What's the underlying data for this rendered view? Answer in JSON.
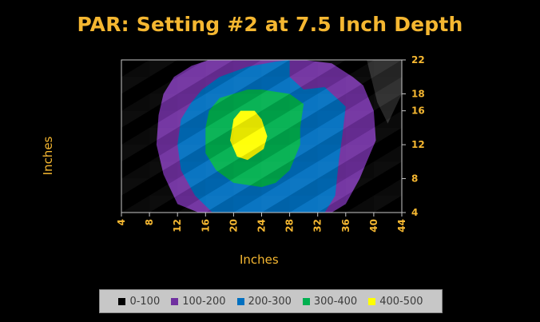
{
  "chart_data": {
    "type": "heatmap",
    "title": "PAR: Setting #2 at 7.5 Inch Depth",
    "xlabel": "Inches",
    "ylabel": "Inches",
    "x_ticks": [
      4,
      8,
      12,
      16,
      20,
      24,
      28,
      32,
      36,
      40,
      44
    ],
    "y_ticks": [
      4,
      8,
      12,
      16,
      18,
      22
    ],
    "xlim": [
      4,
      44
    ],
    "ylim": [
      4,
      22
    ],
    "legend_position": "bottom",
    "bands": [
      {
        "label": "0-100",
        "color": "#000000"
      },
      {
        "label": "100-200",
        "color": "#7030A0"
      },
      {
        "label": "200-300",
        "color": "#0070C0"
      },
      {
        "label": "300-400",
        "color": "#00B050"
      },
      {
        "label": "400-500",
        "color": "#FFFF00"
      }
    ],
    "regions": [
      {
        "band": "100-200",
        "points": [
          [
            11.5,
            20
          ],
          [
            14,
            21.3
          ],
          [
            16.5,
            22
          ],
          [
            30,
            22
          ],
          [
            34,
            21.6
          ],
          [
            37,
            20
          ],
          [
            38.5,
            19
          ],
          [
            40,
            16
          ],
          [
            40.3,
            12.5
          ],
          [
            39,
            10
          ],
          [
            38,
            8
          ],
          [
            36,
            5
          ],
          [
            34,
            4
          ],
          [
            15,
            4
          ],
          [
            12,
            5
          ],
          [
            10,
            8.5
          ],
          [
            9,
            12
          ],
          [
            9.3,
            15.5
          ],
          [
            10,
            18
          ]
        ]
      },
      {
        "band": "200-300",
        "points": [
          [
            14,
            17
          ],
          [
            15.5,
            18.5
          ],
          [
            18,
            20
          ],
          [
            22,
            21.2
          ],
          [
            26,
            21.8
          ],
          [
            28,
            22
          ],
          [
            28,
            20
          ],
          [
            30,
            18.5
          ],
          [
            33,
            18.8
          ],
          [
            36,
            16.5
          ],
          [
            35.5,
            13
          ],
          [
            35,
            10
          ],
          [
            34.5,
            6
          ],
          [
            33,
            4
          ],
          [
            17,
            4
          ],
          [
            14.5,
            6
          ],
          [
            12.5,
            9
          ],
          [
            12,
            12
          ],
          [
            12.5,
            15
          ]
        ]
      },
      {
        "band": "300-400",
        "points": [
          [
            16,
            14
          ],
          [
            16.5,
            16
          ],
          [
            18,
            17.5
          ],
          [
            22,
            18.5
          ],
          [
            24,
            18.5
          ],
          [
            28,
            18
          ],
          [
            30,
            16.8
          ],
          [
            29.5,
            14
          ],
          [
            29.5,
            12
          ],
          [
            28,
            9
          ],
          [
            26,
            7.5
          ],
          [
            24,
            7
          ],
          [
            20,
            7.5
          ],
          [
            17.5,
            9
          ],
          [
            16,
            11
          ]
        ]
      },
      {
        "band": "400-500",
        "points": [
          [
            20,
            15
          ],
          [
            21,
            16
          ],
          [
            23,
            16
          ],
          [
            24,
            15
          ],
          [
            24.8,
            13
          ],
          [
            24.3,
            11.5
          ],
          [
            22,
            10.2
          ],
          [
            20.5,
            10.6
          ],
          [
            19.5,
            12.5
          ]
        ]
      }
    ],
    "corner_shade": {
      "color": "#2a2a2a",
      "points": [
        [
          39,
          22
        ],
        [
          44,
          22
        ],
        [
          44,
          18
        ],
        [
          42,
          14.5
        ],
        [
          40.5,
          17
        ]
      ]
    }
  },
  "legend": {
    "items": [
      {
        "label": "0-100",
        "color": "#000000"
      },
      {
        "label": "100-200",
        "color": "#7030A0"
      },
      {
        "label": "200-300",
        "color": "#0070C0"
      },
      {
        "label": "300-400",
        "color": "#00B050"
      },
      {
        "label": "400-500",
        "color": "#FFFF00"
      }
    ]
  },
  "colors": {
    "accent": "#F5B731",
    "axis": "#C8C8C8"
  }
}
